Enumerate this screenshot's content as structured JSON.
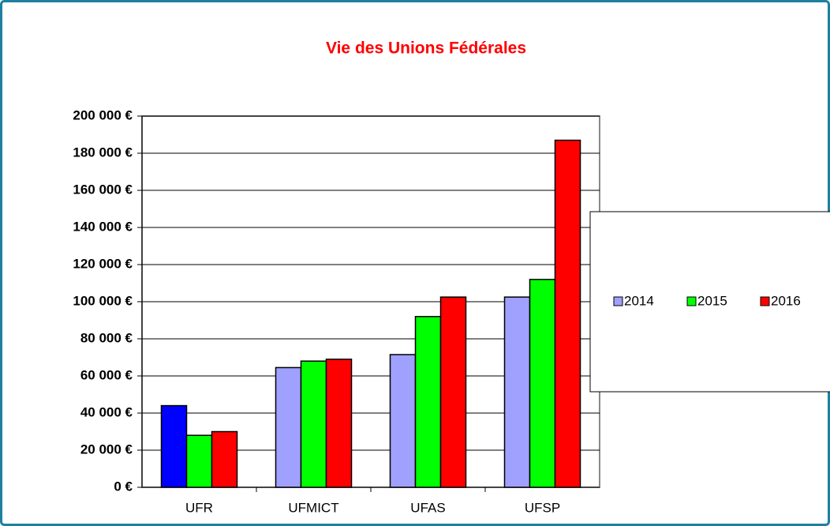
{
  "chart_data": {
    "type": "bar",
    "title": "Vie des Unions Fédérales",
    "categories": [
      "UFR",
      "UFMICT",
      "UFAS",
      "UFSP"
    ],
    "series": [
      {
        "name": "2014",
        "color": "#a0a0ff",
        "point_colors": [
          "#0000ff",
          "#a0a0ff",
          "#a0a0ff",
          "#a0a0ff"
        ],
        "values": [
          44000,
          64500,
          71500,
          102500
        ]
      },
      {
        "name": "2015",
        "color": "#00ff00",
        "values": [
          28000,
          68000,
          92000,
          112000
        ]
      },
      {
        "name": "2016",
        "color": "#ff0000",
        "values": [
          30000,
          69000,
          102500,
          187000
        ]
      }
    ],
    "ylim": [
      0,
      200000
    ],
    "yticks": [
      {
        "value": 0,
        "label": "0 €"
      },
      {
        "value": 20000,
        "label": "20 000 €"
      },
      {
        "value": 40000,
        "label": "40 000 €"
      },
      {
        "value": 60000,
        "label": "60 000 €"
      },
      {
        "value": 80000,
        "label": "80 000 €"
      },
      {
        "value": 100000,
        "label": "100 000 €"
      },
      {
        "value": 120000,
        "label": "120 000 €"
      },
      {
        "value": 140000,
        "label": "140 000 €"
      },
      {
        "value": 160000,
        "label": "160 000 €"
      },
      {
        "value": 180000,
        "label": "180 000 €"
      },
      {
        "value": 200000,
        "label": "200 000 €"
      }
    ],
    "grid": true,
    "legend": "right"
  }
}
